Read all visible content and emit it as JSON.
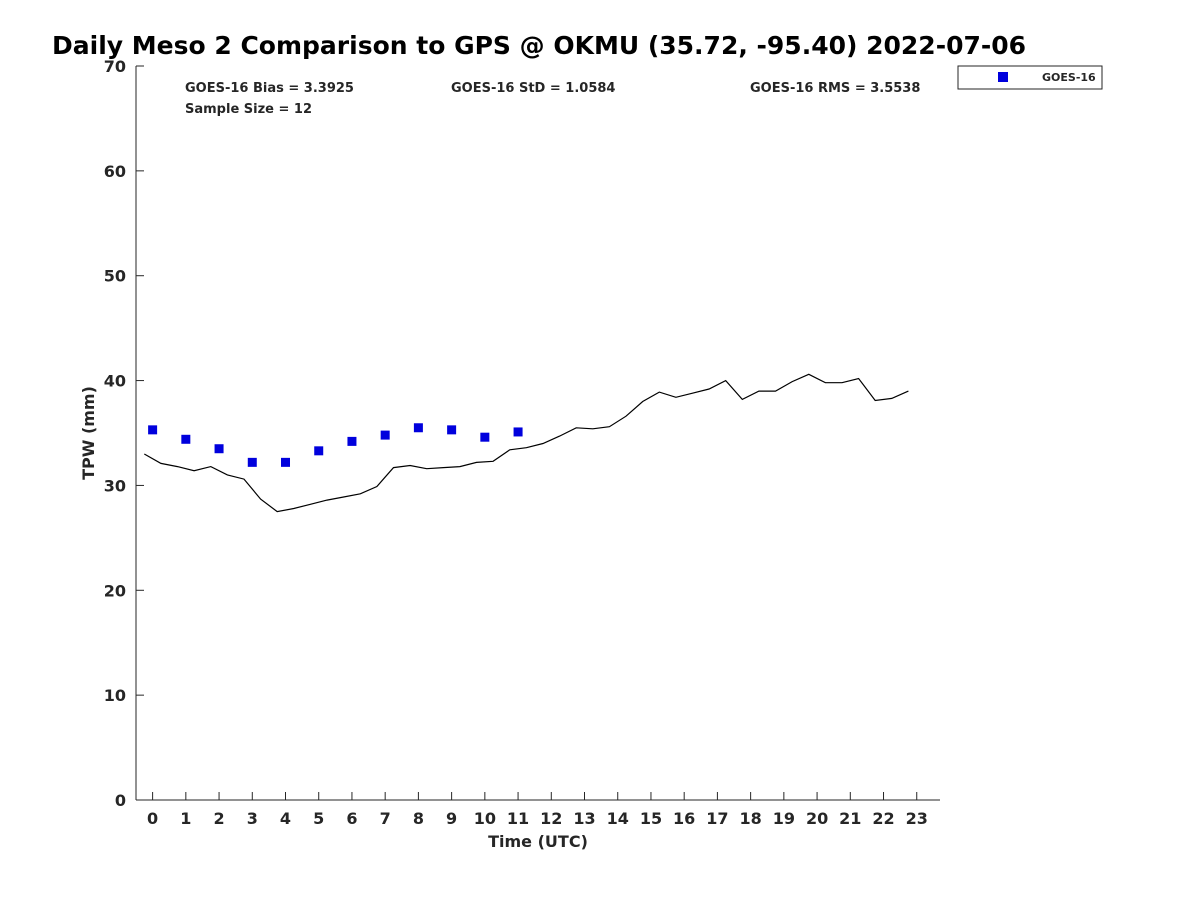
{
  "chart_data": {
    "type": "scatter",
    "title": "Daily Meso 2 Comparison to GPS @ OKMU (35.72, -95.40) 2022-07-06",
    "xlabel": "Time (UTC)",
    "ylabel": "TPW (mm)",
    "xlim": [
      -0.5,
      23.7
    ],
    "ylim": [
      0,
      70
    ],
    "xticks": [
      0,
      1,
      2,
      3,
      4,
      5,
      6,
      7,
      8,
      9,
      10,
      11,
      12,
      13,
      14,
      15,
      16,
      17,
      18,
      19,
      20,
      21,
      22,
      23
    ],
    "yticks": [
      0,
      10,
      20,
      30,
      40,
      50,
      60,
      70
    ],
    "grid": false,
    "legend_position": "top-right",
    "stats": {
      "bias": "GOES-16 Bias = 3.3925",
      "std": "GOES-16 StD = 1.0584",
      "rms": "GOES-16 RMS = 3.5538",
      "sample_size": "Sample Size = 12"
    },
    "series": [
      {
        "name": "GOES-16",
        "kind": "scatter",
        "marker": "square",
        "color": "#0000dd",
        "x": [
          0,
          1,
          2,
          3,
          4,
          5,
          6,
          7,
          8,
          9,
          10,
          11
        ],
        "y": [
          35.3,
          34.4,
          33.5,
          32.2,
          32.2,
          33.3,
          34.2,
          34.8,
          35.5,
          35.3,
          34.6,
          35.1
        ]
      },
      {
        "kind": "line",
        "color": "#000000",
        "x": [
          -0.25,
          0.25,
          0.75,
          1.25,
          1.75,
          2.25,
          2.75,
          3.25,
          3.75,
          4.25,
          4.75,
          5.25,
          5.75,
          6.25,
          6.75,
          7.25,
          7.75,
          8.25,
          8.75,
          9.25,
          9.75,
          10.25,
          10.75,
          11.25,
          11.75,
          12.25,
          12.75,
          13.25,
          13.75,
          14.25,
          14.75,
          15.25,
          15.75,
          16.25,
          16.75,
          17.25,
          17.75,
          18.25,
          18.75,
          19.25,
          19.75,
          20.25,
          20.75,
          21.25,
          21.75,
          22.25,
          22.75
        ],
        "y": [
          33.0,
          32.1,
          31.8,
          31.4,
          31.8,
          31.0,
          30.6,
          28.7,
          27.5,
          27.8,
          28.2,
          28.6,
          28.9,
          29.2,
          29.9,
          31.7,
          31.9,
          31.6,
          31.7,
          31.8,
          32.2,
          32.3,
          33.4,
          33.6,
          34.0,
          34.7,
          35.5,
          35.4,
          35.6,
          36.6,
          38.0,
          38.9,
          38.4,
          38.8,
          39.2,
          40.0,
          38.2,
          39.0,
          39.0,
          39.9,
          40.6,
          39.8,
          39.8,
          40.2,
          38.1,
          38.3,
          39.0
        ]
      }
    ]
  }
}
